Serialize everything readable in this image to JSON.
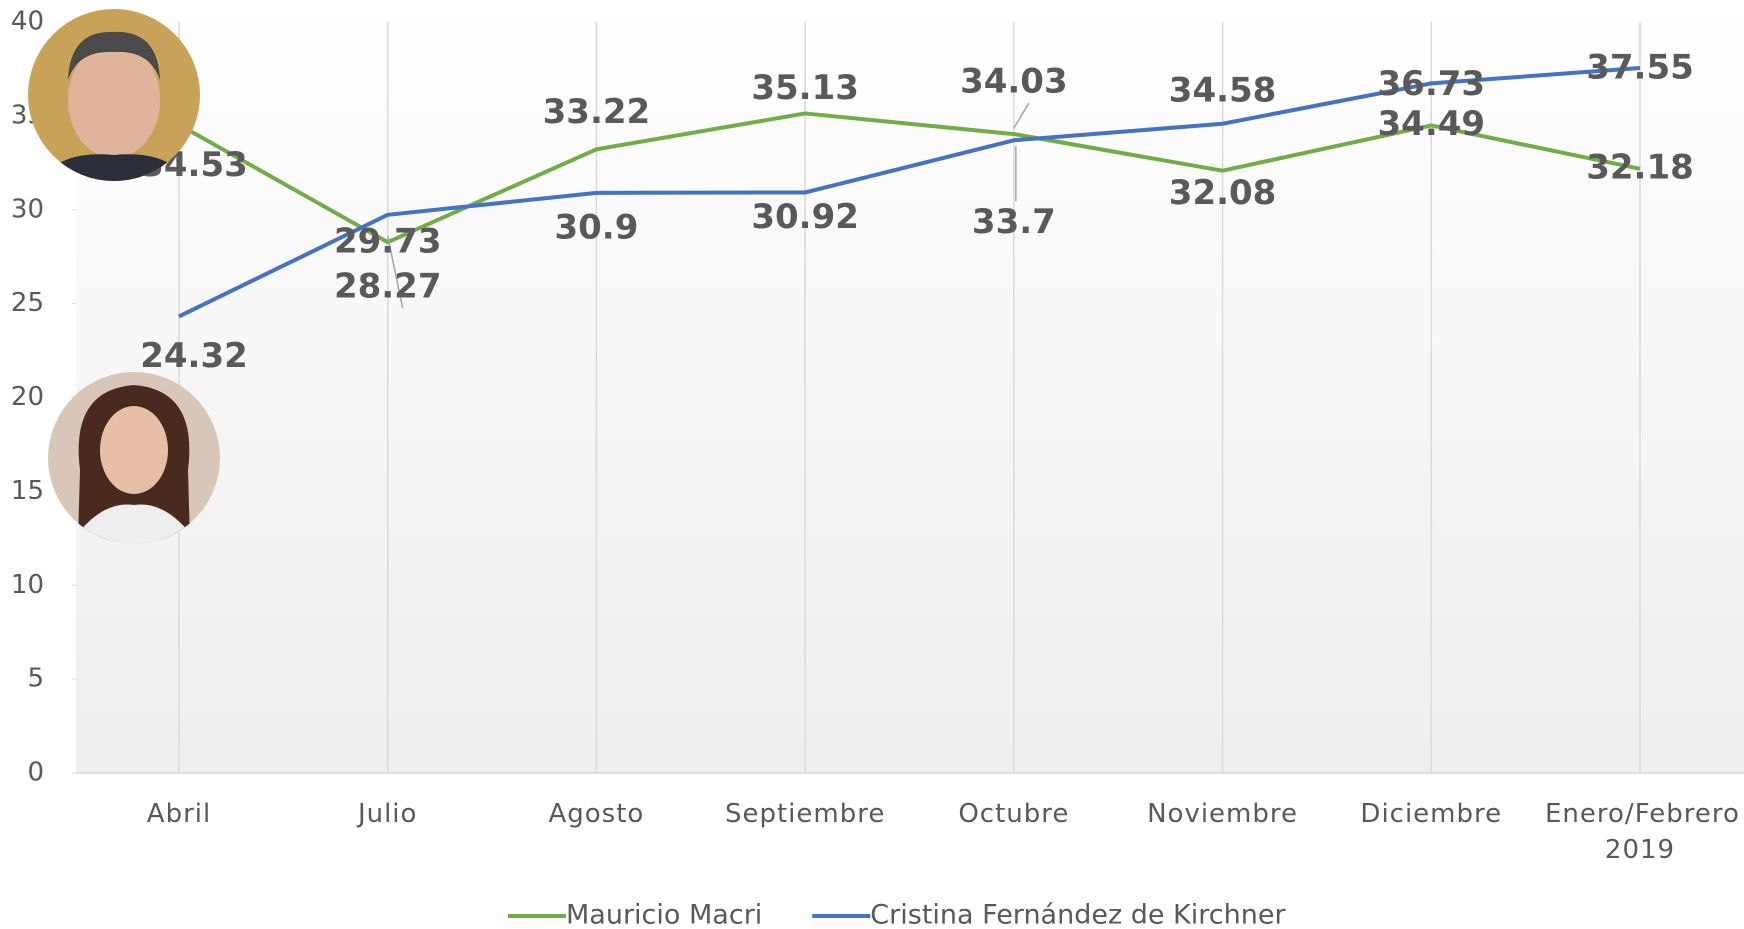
{
  "chart_data": {
    "type": "line",
    "categories": [
      "Abril",
      "Julio",
      "Agosto",
      "Septiembre",
      "Octubre",
      "Noviembre",
      "Diciembre",
      "Enero/Febrero 2019"
    ],
    "series": [
      {
        "name": "Mauricio Macri",
        "color": "#70ad47",
        "values": [
          34.53,
          28.27,
          33.22,
          35.13,
          34.03,
          32.08,
          34.49,
          32.18
        ]
      },
      {
        "name": "Cristina Fernández de Kirchner",
        "color": "#4472c4",
        "values": [
          24.32,
          29.73,
          30.9,
          30.92,
          33.7,
          34.58,
          36.73,
          37.55
        ]
      }
    ],
    "ylim": [
      0,
      40
    ],
    "yticks": [
      0,
      5,
      10,
      15,
      20,
      25,
      30,
      35,
      40
    ],
    "legend": "bottom"
  }
}
